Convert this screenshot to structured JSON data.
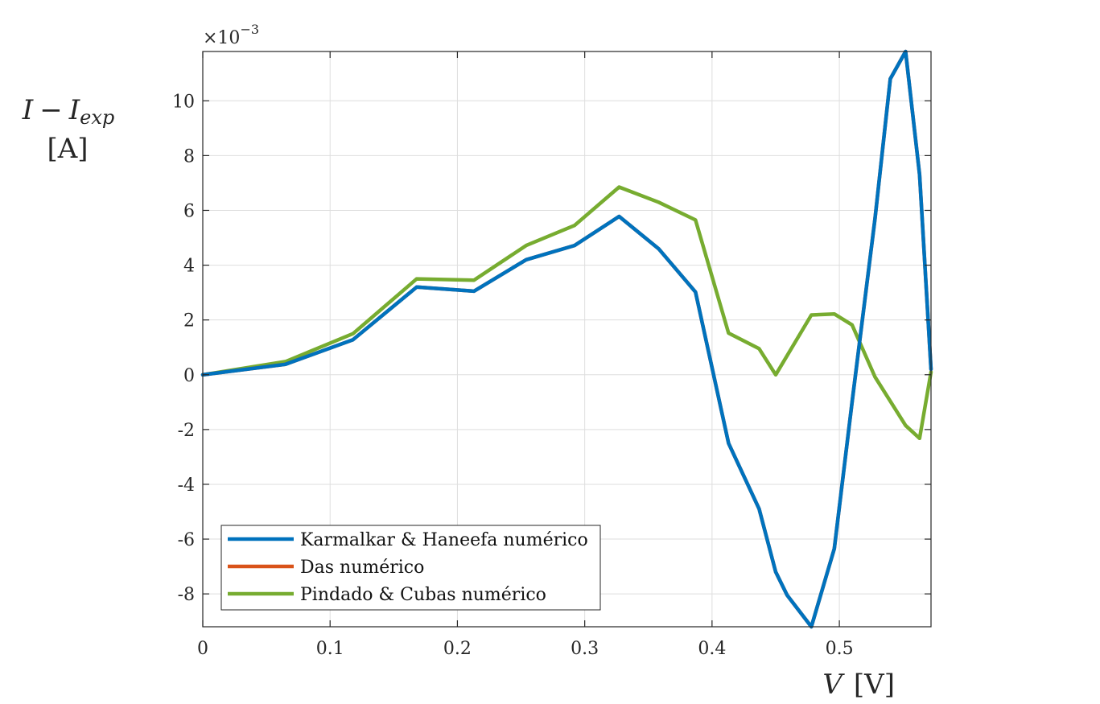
{
  "chart_data": {
    "type": "line",
    "xlabel": {
      "var": "V",
      "unit": "[V]"
    },
    "ylabel": {
      "main": "I",
      "minus": "−",
      "sub_var": "I",
      "sub": "exp",
      "unit": "[A]"
    },
    "y_exponent_label": "×10",
    "y_exponent_power": "−3",
    "xlim": [
      0,
      0.572
    ],
    "ylim": [
      -9.2,
      11.8
    ],
    "x_ticks": [
      0,
      0.1,
      0.2,
      0.3,
      0.4,
      0.5
    ],
    "x_tick_labels": [
      "0",
      "0.1",
      "0.2",
      "0.3",
      "0.4",
      "0.5"
    ],
    "y_ticks": [
      -8,
      -6,
      -4,
      -2,
      0,
      2,
      4,
      6,
      8,
      10
    ],
    "y_tick_labels": [
      "-8",
      "-6",
      "-4",
      "-2",
      "0",
      "2",
      "4",
      "6",
      "8",
      "10"
    ],
    "grid": true,
    "legend_position": "bottom-left",
    "series": [
      {
        "name": "Karmalkar & Haneefa numérico",
        "color": "#0072BD",
        "x": [
          0,
          0.065,
          0.118,
          0.168,
          0.213,
          0.254,
          0.292,
          0.327,
          0.358,
          0.387,
          0.413,
          0.437,
          0.45,
          0.459,
          0.478,
          0.496,
          0.51,
          0.528,
          0.54,
          0.552,
          0.563,
          0.572
        ],
        "y": [
          0,
          0.38,
          1.28,
          3.2,
          3.05,
          4.2,
          4.72,
          5.78,
          4.6,
          3.02,
          -2.5,
          -4.9,
          -7.2,
          -8.05,
          -9.2,
          -6.35,
          -1.0,
          5.7,
          10.8,
          11.8,
          7.3,
          0.2
        ]
      },
      {
        "name": "Das numérico",
        "color": "#D95319",
        "x": [
          0,
          0.065,
          0.118,
          0.168,
          0.213,
          0.254,
          0.292,
          0.327,
          0.358,
          0.387,
          0.413,
          0.437,
          0.45,
          0.459,
          0.478,
          0.496,
          0.51,
          0.528,
          0.54,
          0.552,
          0.563,
          0.572
        ],
        "y": [
          0,
          0.38,
          1.28,
          3.2,
          3.05,
          4.2,
          4.72,
          5.78,
          4.6,
          3.02,
          -2.5,
          -4.9,
          -7.2,
          -8.05,
          -9.2,
          -6.35,
          -1.0,
          5.7,
          10.8,
          11.8,
          7.3,
          0.2
        ]
      },
      {
        "name": "Pindado & Cubas numérico",
        "color": "#77AC30",
        "x": [
          0,
          0.065,
          0.118,
          0.168,
          0.213,
          0.254,
          0.292,
          0.327,
          0.358,
          0.387,
          0.413,
          0.437,
          0.45,
          0.478,
          0.496,
          0.51,
          0.528,
          0.552,
          0.563,
          0.572
        ],
        "y": [
          0,
          0.48,
          1.5,
          3.5,
          3.45,
          4.72,
          5.45,
          6.85,
          6.3,
          5.65,
          1.52,
          0.95,
          0.0,
          2.18,
          2.22,
          1.82,
          -0.08,
          -1.85,
          -2.32,
          0.1
        ]
      }
    ]
  }
}
